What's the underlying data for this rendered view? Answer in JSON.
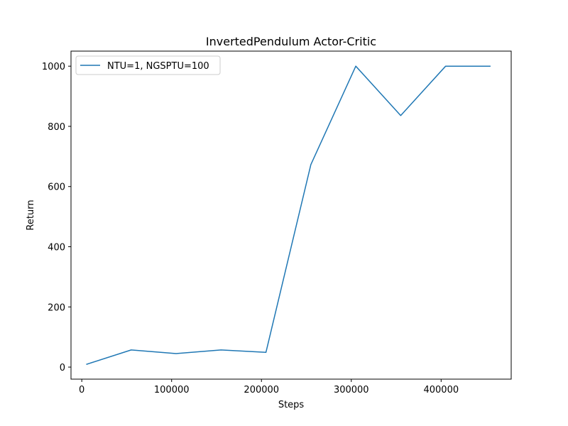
{
  "chart_data": {
    "type": "line",
    "title": "InvertedPendulum Actor-Critic",
    "xlabel": "Steps",
    "ylabel": "Return",
    "xlim": [
      -12000,
      478000
    ],
    "ylim": [
      -40,
      1050
    ],
    "xticks": [
      0,
      100000,
      200000,
      300000,
      400000
    ],
    "xtick_labels": [
      "0",
      "100000",
      "200000",
      "300000",
      "400000"
    ],
    "yticks": [
      0,
      200,
      400,
      600,
      800,
      1000
    ],
    "ytick_labels": [
      "0",
      "200",
      "400",
      "600",
      "800",
      "1000"
    ],
    "grid": false,
    "legend_position": "top-left",
    "series": [
      {
        "name": "NTU=1, NGSPTU=100",
        "color": "#1f77b4",
        "x": [
          5000,
          55000,
          105000,
          155000,
          205000,
          255000,
          305000,
          355000,
          405000,
          455000
        ],
        "y": [
          9,
          57,
          45,
          57,
          49,
          673,
          1000,
          836,
          1000,
          1000
        ]
      }
    ]
  }
}
